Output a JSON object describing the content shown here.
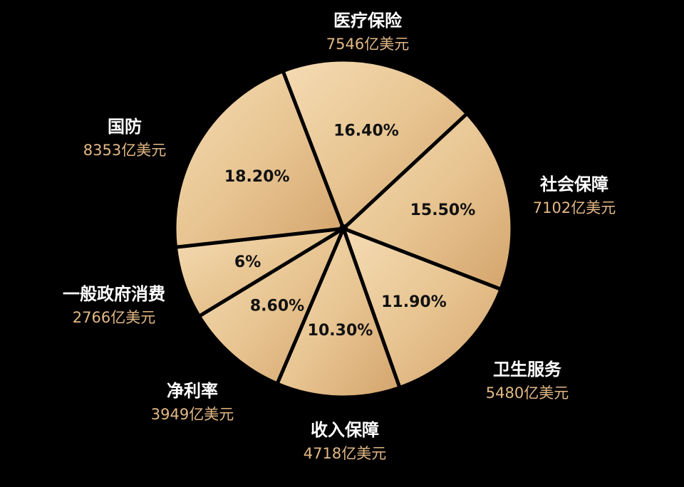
{
  "chart_data": {
    "type": "pie",
    "title": "",
    "slices": [
      {
        "name": "医疗保险",
        "value": 7546,
        "value_label": "7546亿美元",
        "percent": 16.4,
        "percent_label": "16.40%"
      },
      {
        "name": "社会保障",
        "value": 7102,
        "value_label": "7102亿美元",
        "percent": 15.5,
        "percent_label": "15.50%"
      },
      {
        "name": "卫生服务",
        "value": 5480,
        "value_label": "5480亿美元",
        "percent": 11.9,
        "percent_label": "11.90%"
      },
      {
        "name": "收入保障",
        "value": 4718,
        "value_label": "4718亿美元",
        "percent": 10.3,
        "percent_label": "10.30%"
      },
      {
        "name": "净利率",
        "value": 3949,
        "value_label": "3949亿美元",
        "percent": 8.6,
        "percent_label": "8.60%"
      },
      {
        "name": "一般政府消费",
        "value": 2766,
        "value_label": "2766亿美元",
        "percent": 6,
        "percent_label": "6%"
      },
      {
        "name": "国防",
        "value": 8353,
        "value_label": "8353亿美元",
        "percent": 18.2,
        "percent_label": "18.20%"
      }
    ],
    "colors": {
      "background": "#000000",
      "slice_light": "#f5dcb4",
      "slice_dark": "#d4a46c",
      "separator": "#000000",
      "name_text": "#ffffff",
      "value_text": "#e3b985",
      "percent_text": "#111111"
    }
  }
}
